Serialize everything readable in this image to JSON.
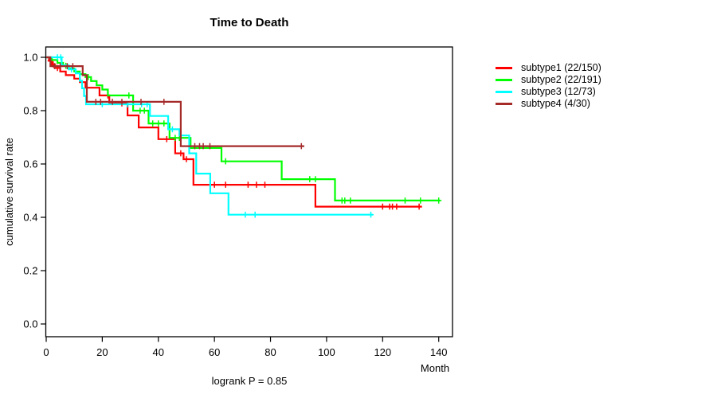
{
  "chart_data": {
    "type": "line",
    "variant": "kaplan-meier-step",
    "title": "Time to Death",
    "xlabel": "Month",
    "ylabel": "cumulative survival rate",
    "annotation": "logrank P = 0.85",
    "xlim": [
      0,
      140
    ],
    "ylim": [
      0.0,
      1.0
    ],
    "xticks": [
      0,
      20,
      40,
      60,
      80,
      100,
      120,
      140
    ],
    "yticks": [
      0.0,
      0.2,
      0.4,
      0.6,
      0.8,
      1.0
    ],
    "ytick_labels": [
      "0.0",
      "0.2",
      "0.4",
      "0.6",
      "0.8",
      "1.0"
    ],
    "grid": false,
    "legend_position": "right-outside",
    "axis_color": "#000000",
    "series": [
      {
        "name": "subtype1 (22/150)",
        "color": "#FF0000",
        "steps": [
          [
            0,
            1.0
          ],
          [
            1,
            0.987
          ],
          [
            2,
            0.973
          ],
          [
            3,
            0.96
          ],
          [
            5,
            0.947
          ],
          [
            7,
            0.933
          ],
          [
            10,
            0.92
          ],
          [
            12,
            0.907
          ],
          [
            14,
            0.886
          ],
          [
            19,
            0.857
          ],
          [
            22.5,
            0.827
          ],
          [
            29,
            0.782
          ],
          [
            33,
            0.737
          ],
          [
            40,
            0.693
          ],
          [
            46,
            0.64
          ],
          [
            49,
            0.618
          ],
          [
            52.5,
            0.522
          ],
          [
            96,
            0.44
          ]
        ],
        "end_time": 134,
        "censor_times": [
          1.5,
          2.5,
          4,
          22,
          27,
          43,
          48,
          50,
          60,
          64,
          72,
          75,
          78,
          120,
          122.5,
          123.5,
          125,
          133
        ]
      },
      {
        "name": "subtype2 (22/191)",
        "color": "#00FF00",
        "steps": [
          [
            0,
            1.0
          ],
          [
            2,
            0.99
          ],
          [
            4,
            0.979
          ],
          [
            6,
            0.968
          ],
          [
            8,
            0.958
          ],
          [
            10,
            0.947
          ],
          [
            12,
            0.937
          ],
          [
            14,
            0.926
          ],
          [
            16,
            0.911
          ],
          [
            18,
            0.895
          ],
          [
            20,
            0.879
          ],
          [
            22,
            0.857
          ],
          [
            31,
            0.8
          ],
          [
            36.5,
            0.752
          ],
          [
            44,
            0.698
          ],
          [
            51.5,
            0.66
          ],
          [
            62.5,
            0.61
          ],
          [
            84,
            0.543
          ],
          [
            103,
            0.463
          ]
        ],
        "end_time": 140.5,
        "censor_times": [
          7,
          15,
          29.5,
          33.5,
          35,
          38,
          40,
          42,
          46,
          47.5,
          64,
          94,
          96,
          105.5,
          106.5,
          108.5,
          128,
          133.5,
          140
        ]
      },
      {
        "name": "subtype3 (12/73)",
        "color": "#00FFFF",
        "steps": [
          [
            0,
            1.0
          ],
          [
            5.5,
            0.97
          ],
          [
            8,
            0.955
          ],
          [
            10.5,
            0.94
          ],
          [
            12,
            0.912
          ],
          [
            12.8,
            0.884
          ],
          [
            13.5,
            0.855
          ],
          [
            14.2,
            0.824
          ],
          [
            37,
            0.78
          ],
          [
            43.5,
            0.73
          ],
          [
            47.5,
            0.707
          ],
          [
            51,
            0.64
          ],
          [
            53.5,
            0.564
          ],
          [
            58.5,
            0.49
          ],
          [
            65,
            0.41
          ]
        ],
        "end_time": 116.5,
        "censor_times": [
          4,
          5.2,
          9,
          20,
          29,
          34,
          36,
          45,
          71,
          74.5,
          115.8
        ]
      },
      {
        "name": "subtype4 (4/30)",
        "color": "#A52A2A",
        "steps": [
          [
            0,
            1.0
          ],
          [
            1.5,
            0.967
          ],
          [
            13,
            0.933
          ],
          [
            14.5,
            0.833
          ],
          [
            48,
            0.667
          ]
        ],
        "end_time": 92,
        "censor_times": [
          3,
          5,
          7.5,
          9.5,
          17.7,
          19.4,
          23.6,
          27,
          33.8,
          42,
          53,
          54.7,
          56,
          58.4,
          91
        ]
      }
    ]
  }
}
